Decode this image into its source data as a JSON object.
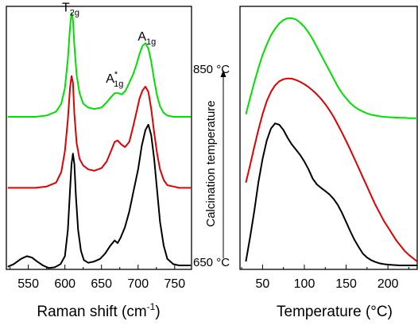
{
  "chart_data": [
    {
      "type": "line",
      "xlabel_main": "Raman shift (cm",
      "xlabel_sup": "-1",
      "xlabel_close": ")",
      "xlim": [
        520,
        773
      ],
      "ylim": [
        0,
        100
      ],
      "xticks": [
        550,
        600,
        650,
        700,
        750
      ],
      "annotations": [
        {
          "base": "T",
          "sub": "2g",
          "sup": "",
          "x": 608,
          "y": 98
        },
        {
          "base": "A",
          "sub": "1g",
          "sup": "*",
          "x": 668,
          "y": 71
        },
        {
          "base": "A",
          "sub": "1g",
          "sup": "",
          "x": 712,
          "y": 87
        }
      ],
      "series": [
        {
          "color": "#00e000",
          "x": [
            522,
            540,
            560,
            575,
            588,
            595,
            600,
            604,
            607,
            609,
            611,
            613,
            616,
            620,
            625,
            632,
            640,
            650,
            657,
            663,
            668,
            673,
            678,
            683,
            688,
            693,
            698,
            702,
            706,
            710,
            714,
            718,
            722,
            726,
            730,
            735,
            740,
            748,
            756,
            764,
            772
          ],
          "y": [
            58,
            58,
            58,
            58.5,
            60,
            63,
            69,
            80,
            92,
            97.5,
            95,
            85,
            74,
            67,
            63,
            61.5,
            61,
            61.5,
            63.5,
            65.5,
            67,
            67,
            66.5,
            68,
            71,
            74,
            78,
            82,
            85,
            86,
            84,
            79,
            72,
            66,
            62,
            59.5,
            58.5,
            58,
            58,
            58,
            58
          ]
        },
        {
          "color": "#e00000",
          "x": [
            522,
            540,
            560,
            575,
            588,
            595,
            600,
            604,
            607,
            609,
            611,
            613,
            616,
            620,
            625,
            632,
            640,
            650,
            657,
            663,
            668,
            672,
            677,
            682,
            688,
            693,
            698,
            702,
            706,
            710,
            714,
            718,
            722,
            726,
            730,
            735,
            740,
            748,
            756,
            764,
            772
          ],
          "y": [
            31,
            31,
            31,
            31.5,
            33,
            37,
            45,
            57,
            69,
            73.5,
            71,
            59,
            48,
            42,
            39.5,
            38,
            37.5,
            38.5,
            41,
            45,
            48.5,
            49,
            47.5,
            46.5,
            48.5,
            54,
            60,
            65,
            68,
            69.5,
            67.5,
            61,
            52,
            44,
            38,
            34,
            32,
            31.5,
            31,
            31,
            31
          ]
        },
        {
          "color": "#000000",
          "x": [
            522,
            530,
            540,
            548,
            555,
            562,
            570,
            578,
            586,
            594,
            600,
            604,
            607,
            609,
            611,
            613,
            615,
            618,
            622,
            626,
            632,
            640,
            648,
            655,
            662,
            668,
            672,
            676,
            682,
            688,
            694,
            700,
            705,
            710,
            714,
            718,
            722,
            726,
            730,
            735,
            740,
            748,
            756,
            764,
            772
          ],
          "y": [
            1,
            2,
            4,
            5,
            4.5,
            3,
            1.5,
            0.5,
            0.8,
            2,
            5,
            15,
            30,
            40,
            44,
            40,
            28,
            15,
            7,
            3.5,
            2.5,
            3,
            4,
            6,
            9,
            11,
            10,
            12,
            16,
            22,
            30,
            38,
            47,
            53,
            55,
            51,
            42,
            30,
            18,
            9,
            4,
            2,
            1.5,
            1.5,
            1.5
          ]
        }
      ]
    },
    {
      "type": "line",
      "xlabel": "Temperature (°C)",
      "xlim": [
        23,
        235
      ],
      "ylim": [
        0,
        100
      ],
      "xticks": [
        50,
        100,
        150,
        200
      ],
      "series": [
        {
          "color": "#00e000",
          "x": [
            30,
            35,
            40,
            45,
            50,
            55,
            60,
            65,
            70,
            75,
            80,
            85,
            90,
            95,
            100,
            105,
            110,
            115,
            120,
            125,
            130,
            135,
            140,
            145,
            150,
            155,
            160,
            165,
            170,
            175,
            180,
            185,
            190,
            195,
            200,
            205,
            210,
            215,
            220,
            225,
            235
          ],
          "y": [
            59,
            65,
            71,
            76.5,
            81.5,
            85.5,
            89,
            91.5,
            93.5,
            94.8,
            95.5,
            95.5,
            95,
            93.8,
            92.2,
            90,
            87.5,
            84.5,
            81.5,
            78.5,
            75.5,
            72.5,
            69.5,
            67,
            65,
            63.2,
            61.8,
            60.8,
            60,
            59.3,
            58.8,
            58.5,
            58.2,
            58,
            57.9,
            57.8,
            57.7,
            57.6,
            57.6,
            57.5,
            57.5
          ]
        },
        {
          "color": "#e00000",
          "x": [
            30,
            35,
            40,
            45,
            50,
            55,
            60,
            65,
            70,
            75,
            80,
            85,
            90,
            95,
            100,
            105,
            110,
            115,
            120,
            125,
            130,
            135,
            140,
            145,
            150,
            155,
            160,
            165,
            170,
            175,
            180,
            185,
            190,
            195,
            200,
            205,
            210,
            215,
            220,
            225,
            235
          ],
          "y": [
            33,
            39.5,
            46.5,
            53,
            59,
            64,
            67.5,
            70,
            71.5,
            72.3,
            72.6,
            72.5,
            72,
            71.3,
            70.4,
            69.3,
            68,
            66.5,
            64.8,
            62.8,
            60.5,
            58,
            55,
            52,
            48.8,
            45.5,
            42,
            38.5,
            35,
            31.5,
            28,
            24.5,
            21.5,
            18.5,
            16,
            13.5,
            11,
            9,
            7,
            5.5,
            3
          ]
        },
        {
          "color": "#000000",
          "x": [
            30,
            35,
            40,
            45,
            50,
            55,
            60,
            65,
            70,
            75,
            80,
            85,
            90,
            95,
            100,
            105,
            110,
            115,
            120,
            125,
            130,
            135,
            140,
            145,
            150,
            155,
            160,
            165,
            170,
            175,
            180,
            185,
            190,
            195,
            200,
            205,
            210,
            215,
            220,
            225,
            235
          ],
          "y": [
            3,
            12,
            22,
            33,
            42,
            49,
            53.5,
            55.5,
            55,
            53,
            50,
            47.5,
            45.5,
            43.5,
            41,
            38,
            34.5,
            32.3,
            31,
            29.8,
            28.5,
            26.8,
            24.5,
            21.5,
            18,
            14.5,
            11.2,
            8.5,
            6,
            4.5,
            3.5,
            2.8,
            2.3,
            2,
            1.8,
            1.7,
            1.6,
            1.5,
            1.5,
            1.5,
            1.5
          ]
        }
      ]
    }
  ],
  "middle_axis": {
    "top_label": "850 °C",
    "bottom_label": "650 °C",
    "label": "Calcination temperature"
  }
}
